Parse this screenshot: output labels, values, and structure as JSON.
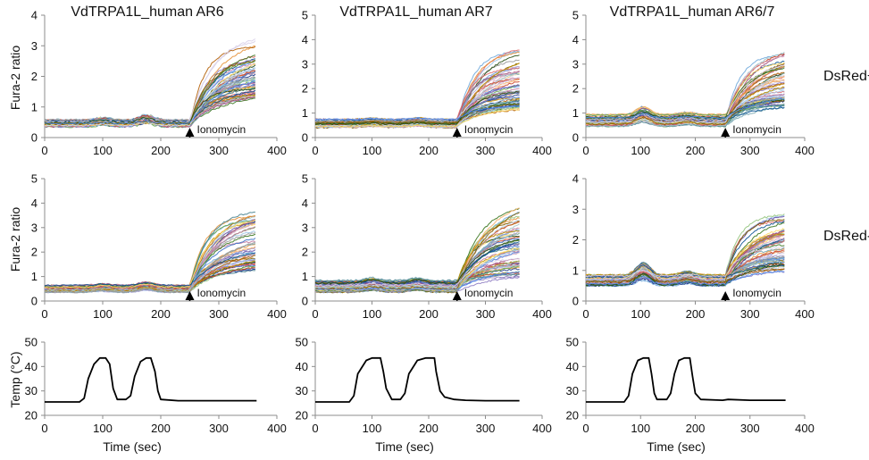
{
  "figure": {
    "column_titles": [
      "VdTRPA1L_human AR6",
      "VdTRPA1L_human AR7",
      "VdTRPA1L_human AR6/7"
    ],
    "row_labels": [
      "DsRed+",
      "DsRed-"
    ],
    "ylabel_ratio": "Fura-2 ratio",
    "ylabel_temp": "Temp (°C)",
    "xlabel": "Time (sec)",
    "annotation": "Ionomycin"
  },
  "chart_data": [
    {
      "type": "line",
      "panel": "AR6 DsRed+",
      "xlim": [
        0,
        400
      ],
      "ylim": [
        0,
        4
      ],
      "xticks": [
        0,
        100,
        200,
        300,
        400
      ],
      "yticks": [
        0,
        1,
        2,
        3,
        4
      ],
      "ionomycin_time": 250,
      "n_traces": 60,
      "baseline_range": [
        0.35,
        0.6
      ],
      "final_range": [
        1.4,
        3.4
      ],
      "trace_end": 365,
      "bumps": [
        [
          100,
          0.05
        ],
        [
          175,
          0.12
        ]
      ],
      "seed": 11
    },
    {
      "type": "line",
      "panel": "AR7 DsRed+",
      "xlim": [
        0,
        400
      ],
      "ylim": [
        0,
        5
      ],
      "xticks": [
        0,
        100,
        200,
        300,
        400
      ],
      "yticks": [
        0,
        1,
        2,
        3,
        4,
        5
      ],
      "ionomycin_time": 250,
      "n_traces": 60,
      "baseline_range": [
        0.4,
        0.75
      ],
      "final_range": [
        1.2,
        3.9
      ],
      "trace_end": 362,
      "bumps": [
        [
          100,
          0.05
        ],
        [
          180,
          0.06
        ]
      ],
      "seed": 22
    },
    {
      "type": "line",
      "panel": "AR6/7 DsRed+",
      "xlim": [
        0,
        400
      ],
      "ylim": [
        0,
        5
      ],
      "xticks": [
        0,
        100,
        200,
        300,
        400
      ],
      "yticks": [
        0,
        1,
        2,
        3,
        4,
        5
      ],
      "ionomycin_time": 255,
      "n_traces": 60,
      "baseline_range": [
        0.45,
        0.95
      ],
      "final_range": [
        1.3,
        3.8
      ],
      "trace_end": 365,
      "bumps": [
        [
          105,
          0.25
        ],
        [
          185,
          0.08
        ]
      ],
      "seed": 33
    },
    {
      "type": "line",
      "panel": "AR6 DsRed-",
      "xlim": [
        0,
        400
      ],
      "ylim": [
        0,
        5
      ],
      "xticks": [
        0,
        100,
        200,
        300,
        400
      ],
      "yticks": [
        0,
        1,
        2,
        3,
        4,
        5
      ],
      "ionomycin_time": 250,
      "n_traces": 55,
      "baseline_range": [
        0.35,
        0.65
      ],
      "final_range": [
        1.3,
        4.1
      ],
      "trace_end": 365,
      "bumps": [
        [
          100,
          0.05
        ],
        [
          175,
          0.1
        ]
      ],
      "seed": 44
    },
    {
      "type": "line",
      "panel": "AR7 DsRed-",
      "xlim": [
        0,
        400
      ],
      "ylim": [
        0,
        5
      ],
      "xticks": [
        0,
        100,
        200,
        300,
        400
      ],
      "yticks": [
        0,
        1,
        2,
        3,
        4,
        5
      ],
      "ionomycin_time": 250,
      "n_traces": 60,
      "baseline_range": [
        0.35,
        0.85
      ],
      "final_range": [
        1.0,
        4.5
      ],
      "trace_end": 362,
      "bumps": [
        [
          100,
          0.1
        ],
        [
          180,
          0.1
        ]
      ],
      "seed": 55
    },
    {
      "type": "line",
      "panel": "AR6/7 DsRed-",
      "xlim": [
        0,
        400
      ],
      "ylim": [
        0,
        4
      ],
      "xticks": [
        0,
        100,
        200,
        300,
        400
      ],
      "yticks": [
        0,
        1,
        2,
        3,
        4
      ],
      "ionomycin_time": 255,
      "n_traces": 60,
      "baseline_range": [
        0.5,
        0.85
      ],
      "final_range": [
        1.0,
        2.9
      ],
      "trace_end": 365,
      "bumps": [
        [
          105,
          0.3
        ],
        [
          185,
          0.1
        ]
      ],
      "seed": 66
    },
    {
      "type": "line",
      "panel": "Temp AR6",
      "xlim": [
        0,
        400
      ],
      "ylim": [
        20,
        50
      ],
      "xticks": [
        0,
        100,
        200,
        300,
        400
      ],
      "yticks": [
        20,
        30,
        40,
        50
      ],
      "x": [
        0,
        60,
        68,
        75,
        85,
        95,
        105,
        112,
        118,
        125,
        140,
        148,
        155,
        165,
        175,
        183,
        190,
        195,
        200,
        230,
        280,
        300,
        365
      ],
      "y": [
        25.5,
        25.5,
        27,
        35,
        41,
        43.5,
        43.5,
        41,
        31,
        26.5,
        26.5,
        28,
        36,
        42,
        43.5,
        43.5,
        38,
        30,
        26.5,
        26,
        26,
        26,
        26
      ]
    },
    {
      "type": "line",
      "panel": "Temp AR7",
      "xlim": [
        0,
        400
      ],
      "ylim": [
        20,
        50
      ],
      "xticks": [
        0,
        100,
        200,
        300,
        400
      ],
      "yticks": [
        20,
        30,
        40,
        50
      ],
      "x": [
        0,
        60,
        68,
        75,
        90,
        100,
        115,
        120,
        125,
        135,
        150,
        158,
        165,
        180,
        195,
        210,
        213,
        220,
        228,
        245,
        265,
        300,
        360
      ],
      "y": [
        25.5,
        25.5,
        28,
        37,
        42.5,
        43.5,
        43.5,
        38,
        31,
        26.5,
        26.5,
        29,
        37,
        42.5,
        43.5,
        43.5,
        38,
        30,
        27.5,
        26.5,
        26.2,
        26,
        26
      ]
    },
    {
      "type": "line",
      "panel": "Temp AR6/7",
      "xlim": [
        0,
        400
      ],
      "ylim": [
        20,
        50
      ],
      "xticks": [
        0,
        100,
        200,
        300,
        400
      ],
      "yticks": [
        20,
        30,
        40,
        50
      ],
      "x": [
        0,
        70,
        78,
        85,
        95,
        105,
        115,
        120,
        125,
        130,
        148,
        155,
        162,
        170,
        180,
        190,
        195,
        200,
        210,
        250,
        260,
        300,
        365
      ],
      "y": [
        25.5,
        25.5,
        28,
        37,
        42.5,
        43.5,
        43.5,
        37,
        29,
        26.5,
        26.5,
        29,
        37,
        42.5,
        43.5,
        43.5,
        36,
        29,
        26.5,
        26.2,
        26.5,
        26.2,
        26.2
      ]
    }
  ],
  "palette": [
    "#1f3c88",
    "#3b6fc4",
    "#6fa8dc",
    "#8e7cc3",
    "#b4a7d6",
    "#e69138",
    "#f6b26b",
    "#6aa84f",
    "#93c47d",
    "#76a5af",
    "#45818e",
    "#c27ba0",
    "#a64d79",
    "#cc4125",
    "#e06666",
    "#d5a6bd",
    "#9fc5e8",
    "#674ea7",
    "#38761d",
    "#b45f06",
    "#bf9000",
    "#ffd966",
    "#a2c4c9",
    "#999999",
    "#0b5394",
    "#c9daf8",
    "#7f6000",
    "#d9d2e9",
    "#274e13",
    "#4a86e8"
  ]
}
